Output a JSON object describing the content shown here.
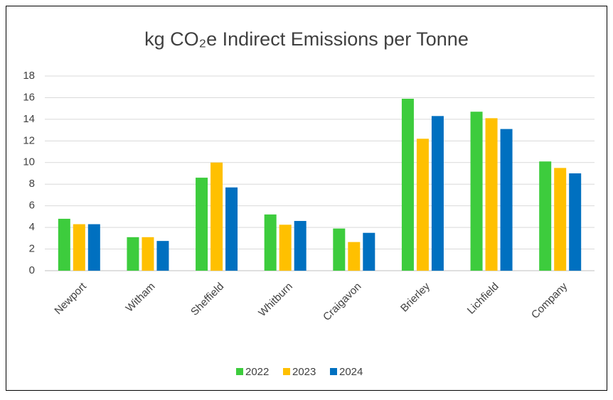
{
  "chart_data": {
    "type": "bar",
    "title": "kg CO₂e Indirect Emissions per Tonne",
    "categories": [
      "Newport",
      "Witham",
      "Sheffield",
      "Whitburn",
      "Craigavon",
      "Brierley",
      "Lichfield",
      "Company"
    ],
    "series": [
      {
        "name": "2022",
        "color": "#3dcc3d",
        "values": [
          4.8,
          3.1,
          8.6,
          5.2,
          3.9,
          15.9,
          14.7,
          10.1
        ]
      },
      {
        "name": "2023",
        "color": "#ffc000",
        "values": [
          4.3,
          3.1,
          10.0,
          4.25,
          2.65,
          12.2,
          14.1,
          9.5
        ]
      },
      {
        "name": "2024",
        "color": "#0070c0",
        "values": [
          4.3,
          2.75,
          7.7,
          4.6,
          3.5,
          14.3,
          13.1,
          9.0
        ]
      }
    ],
    "ylim": [
      0,
      18
    ],
    "yticks": [
      0,
      2,
      4,
      6,
      8,
      10,
      12,
      14,
      16,
      18
    ],
    "grid": true,
    "legend": "bottom"
  }
}
